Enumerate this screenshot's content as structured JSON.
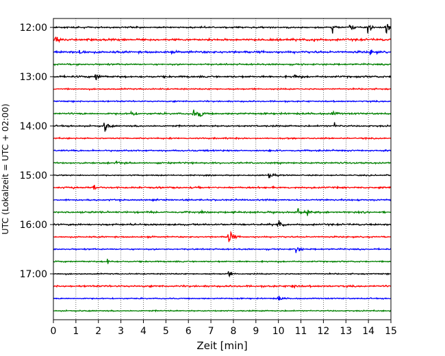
{
  "chart_data": {
    "type": "line",
    "title": "",
    "xlabel": "Zeit  [min]",
    "ylabel": "UTC (Lokalzeit = UTC + 02:00)",
    "xlim": [
      0,
      15
    ],
    "x_ticks": [
      0,
      1,
      2,
      3,
      4,
      5,
      6,
      7,
      8,
      9,
      10,
      11,
      12,
      13,
      14,
      15
    ],
    "x_tick_labels": [
      "0",
      "1",
      "2",
      "3",
      "4",
      "5",
      "6",
      "7",
      "8",
      "9",
      "10",
      "11",
      "12",
      "13",
      "14",
      "15"
    ],
    "y_tick_labels": [
      "12:00",
      "13:00",
      "14:00",
      "15:00",
      "16:00",
      "17:00"
    ],
    "y_tick_rows": [
      0,
      4,
      8,
      12,
      16,
      20
    ],
    "trace_minutes": 15,
    "vertical_grid": "dotted",
    "colors": [
      "#000000",
      "#ff0000",
      "#0000ff",
      "#008000"
    ],
    "traces": [
      {
        "start": "12:00",
        "color": "#000000",
        "noise": 0.45,
        "events": [
          {
            "t": 12.4,
            "a": 3.2
          },
          {
            "t": 13.2,
            "a": 2.8
          },
          {
            "t": 14.0,
            "a": 4.5
          },
          {
            "t": 14.8,
            "a": 3.5
          }
        ]
      },
      {
        "start": "12:15",
        "color": "#ff0000",
        "noise": 0.6,
        "events": [
          {
            "t": 0.1,
            "a": 2.8
          },
          {
            "t": 11.6,
            "a": 1.6
          }
        ]
      },
      {
        "start": "12:30",
        "color": "#0000ff",
        "noise": 0.6,
        "events": [
          {
            "t": 1.2,
            "a": 2.8
          },
          {
            "t": 14.1,
            "a": 2.2
          }
        ]
      },
      {
        "start": "12:45",
        "color": "#008000",
        "noise": 0.45,
        "events": []
      },
      {
        "start": "13:00",
        "color": "#000000",
        "noise": 0.55,
        "events": [
          {
            "t": 1.9,
            "a": 4.0
          },
          {
            "t": 10.7,
            "a": 2.2
          }
        ]
      },
      {
        "start": "13:15",
        "color": "#ff0000",
        "noise": 0.4,
        "events": []
      },
      {
        "start": "13:30",
        "color": "#0000ff",
        "noise": 0.4,
        "events": []
      },
      {
        "start": "13:45",
        "color": "#008000",
        "noise": 0.5,
        "events": [
          {
            "t": 3.5,
            "a": 2.0
          },
          {
            "t": 6.2,
            "a": 2.5
          },
          {
            "t": 6.5,
            "a": 3.8
          },
          {
            "t": 12.4,
            "a": 1.8
          }
        ]
      },
      {
        "start": "14:00",
        "color": "#000000",
        "noise": 0.45,
        "events": [
          {
            "t": 2.3,
            "a": 4.5
          },
          {
            "t": 12.5,
            "a": 2.0
          }
        ]
      },
      {
        "start": "14:15",
        "color": "#ff0000",
        "noise": 0.4,
        "events": []
      },
      {
        "start": "14:30",
        "color": "#0000ff",
        "noise": 0.45,
        "events": []
      },
      {
        "start": "14:45",
        "color": "#008000",
        "noise": 0.45,
        "events": [
          {
            "t": 2.8,
            "a": 1.6
          }
        ]
      },
      {
        "start": "15:00",
        "color": "#000000",
        "noise": 0.35,
        "events": [
          {
            "t": 9.6,
            "a": 3.0
          }
        ]
      },
      {
        "start": "15:15",
        "color": "#ff0000",
        "noise": 0.5,
        "events": [
          {
            "t": 1.8,
            "a": 2.0
          }
        ]
      },
      {
        "start": "15:30",
        "color": "#0000ff",
        "noise": 0.45,
        "events": []
      },
      {
        "start": "15:45",
        "color": "#008000",
        "noise": 0.5,
        "events": [
          {
            "t": 10.9,
            "a": 2.0
          },
          {
            "t": 11.3,
            "a": 1.8
          }
        ]
      },
      {
        "start": "16:00",
        "color": "#000000",
        "noise": 0.5,
        "events": [
          {
            "t": 10.0,
            "a": 3.6
          }
        ]
      },
      {
        "start": "16:15",
        "color": "#ff0000",
        "noise": 0.4,
        "events": [
          {
            "t": 7.8,
            "a": 9.0
          }
        ]
      },
      {
        "start": "16:30",
        "color": "#0000ff",
        "noise": 0.4,
        "events": [
          {
            "t": 10.8,
            "a": 4.0
          }
        ]
      },
      {
        "start": "16:45",
        "color": "#008000",
        "noise": 0.4,
        "events": [
          {
            "t": 2.4,
            "a": 2.0
          }
        ]
      },
      {
        "start": "17:00",
        "color": "#000000",
        "noise": 0.35,
        "events": [
          {
            "t": 7.8,
            "a": 1.8
          }
        ]
      },
      {
        "start": "17:15",
        "color": "#ff0000",
        "noise": 0.5,
        "events": [
          {
            "t": 10.6,
            "a": 2.2
          }
        ]
      },
      {
        "start": "17:30",
        "color": "#0000ff",
        "noise": 0.35,
        "events": [
          {
            "t": 10.0,
            "a": 2.5
          }
        ]
      },
      {
        "start": "17:45",
        "color": "#008000",
        "noise": 0.35,
        "events": []
      }
    ]
  }
}
